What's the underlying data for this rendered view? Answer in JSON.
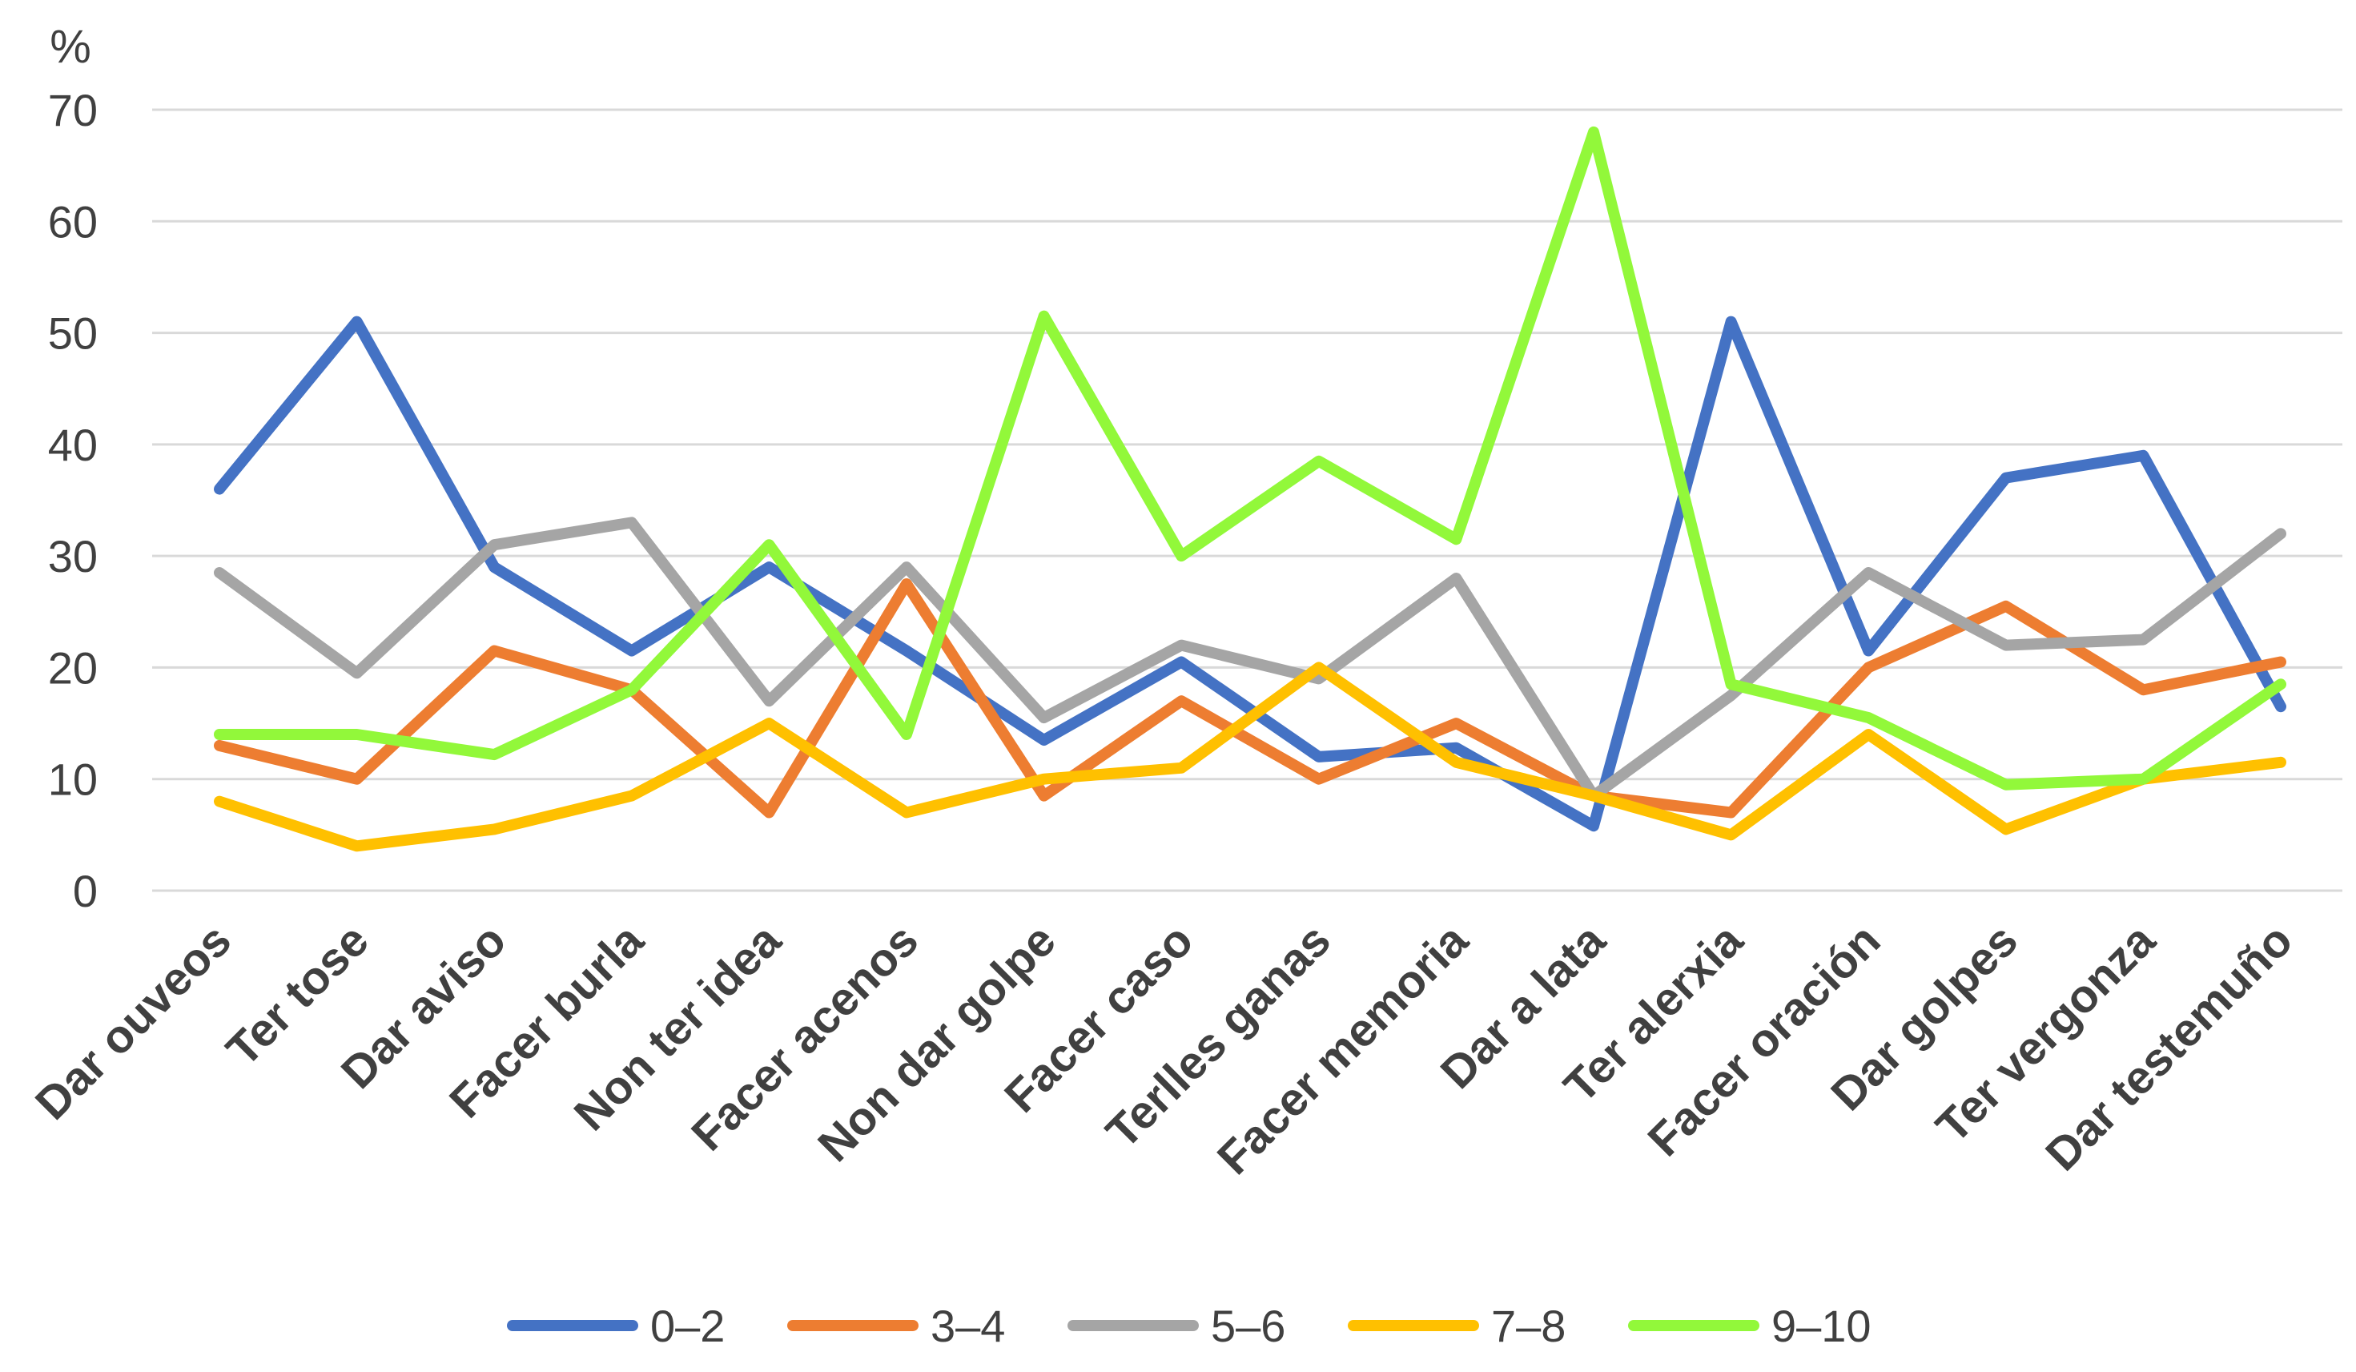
{
  "chart_data": {
    "type": "line",
    "ylabel": "%",
    "ylim": [
      0,
      70
    ],
    "yticks": [
      "0",
      "10",
      "20",
      "30",
      "40",
      "50",
      "60",
      "70"
    ],
    "grid": true,
    "legend_position": "bottom",
    "categories": [
      "Dar ouveos",
      "Ter tose",
      "Dar aviso",
      "Facer burla",
      "Non ter idea",
      "Facer acenos",
      "Non dar golpe",
      "Facer caso",
      "Terlles ganas",
      "Facer memoria",
      "Dar a lata",
      "Ter alerxia",
      "Facer oración",
      "Dar golpes",
      "Ter vergonza",
      "Dar testemuño"
    ],
    "series": [
      {
        "name": "0–2",
        "color": "#4472C4",
        "values": [
          36,
          51,
          29,
          21.5,
          29,
          21.5,
          13.5,
          20.5,
          12,
          12.8,
          5.8,
          51,
          21.5,
          37,
          39,
          16.5
        ]
      },
      {
        "name": "3–4",
        "color": "#ED7D31",
        "values": [
          13,
          10,
          21.5,
          18,
          7,
          27.5,
          8.5,
          17,
          10,
          15,
          8.5,
          7,
          20,
          25.5,
          18,
          20.5
        ]
      },
      {
        "name": "5–6",
        "color": "#A5A5A5",
        "values": [
          28.5,
          19.5,
          31,
          33,
          17,
          29,
          15.5,
          22,
          19,
          28,
          8.5,
          17.5,
          28.5,
          22,
          22.5,
          32
        ]
      },
      {
        "name": "7–8",
        "color": "#FFC000",
        "values": [
          8,
          4,
          5.5,
          8.5,
          15,
          7,
          10,
          11,
          20,
          11.5,
          8.5,
          5,
          14,
          5.5,
          10,
          11.5
        ]
      },
      {
        "name": "9–10",
        "color": "#92F83A",
        "values": [
          14,
          14,
          12.2,
          18,
          31,
          14,
          51.5,
          30,
          38.5,
          31.5,
          68,
          18.5,
          15.5,
          9.5,
          10,
          18.5
        ]
      }
    ]
  }
}
